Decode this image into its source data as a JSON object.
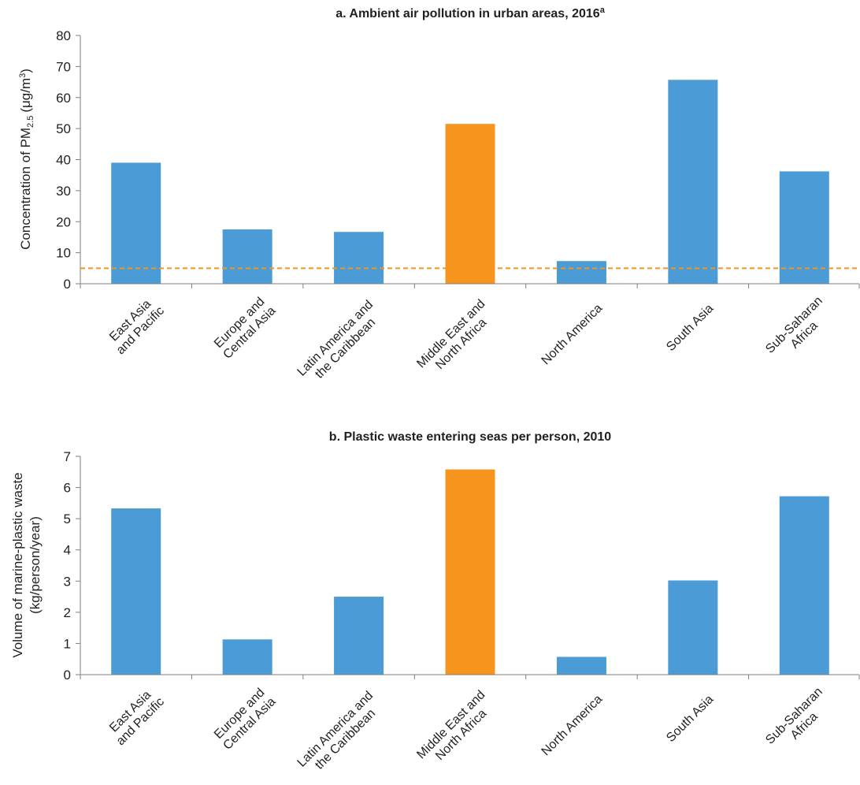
{
  "chart_data": [
    {
      "type": "bar",
      "title": "a. Ambient air pollution in urban areas, 2016",
      "title_superscript": "a",
      "ylabel_main": "Concentration of PM",
      "ylabel_sub": "2.5",
      "ylabel_unit": "(μg/m",
      "ylabel_unit_sup": "3",
      "ylabel_close": ")",
      "categories": [
        [
          "East Asia",
          "and Pacific"
        ],
        [
          "Europe and",
          "Central Asia"
        ],
        [
          "Latin America and",
          "the Caribbean"
        ],
        [
          "Middle East and",
          "North Africa"
        ],
        [
          "North America"
        ],
        [
          "South Asia"
        ],
        [
          "Sub-Saharan",
          "Africa"
        ]
      ],
      "values": [
        39,
        17.5,
        16.7,
        51.5,
        7.3,
        65.7,
        36.2
      ],
      "colors": [
        "#4a9bd6",
        "#4a9bd6",
        "#4a9bd6",
        "#f7941d",
        "#4a9bd6",
        "#4a9bd6",
        "#4a9bd6"
      ],
      "ylim": [
        0,
        80
      ],
      "yticks": [
        "0",
        "10",
        "20",
        "30",
        "40",
        "50",
        "60",
        "70",
        "80"
      ],
      "reference_line": {
        "value": 5,
        "color": "#f7941d",
        "style": "dashed"
      },
      "grid": false
    },
    {
      "type": "bar",
      "title": "b. Plastic waste entering seas per person, 2010",
      "ylabel_lines": [
        "Volume of marine-plastic waste",
        "(kg/person/year)"
      ],
      "categories": [
        [
          "East Asia",
          "and Pacific"
        ],
        [
          "Europe and",
          "Central Asia"
        ],
        [
          "Latin America and",
          "the Caribbean"
        ],
        [
          "Middle East and",
          "North Africa"
        ],
        [
          "North America"
        ],
        [
          "South Asia"
        ],
        [
          "Sub-Saharan",
          "Africa"
        ]
      ],
      "values": [
        5.33,
        1.13,
        2.5,
        6.58,
        0.57,
        3.02,
        5.72
      ],
      "colors": [
        "#4a9bd6",
        "#4a9bd6",
        "#4a9bd6",
        "#f7941d",
        "#4a9bd6",
        "#4a9bd6",
        "#4a9bd6"
      ],
      "ylim": [
        0,
        7
      ],
      "yticks": [
        "0",
        "1",
        "2",
        "3",
        "4",
        "5",
        "6",
        "7"
      ],
      "grid": false
    }
  ]
}
